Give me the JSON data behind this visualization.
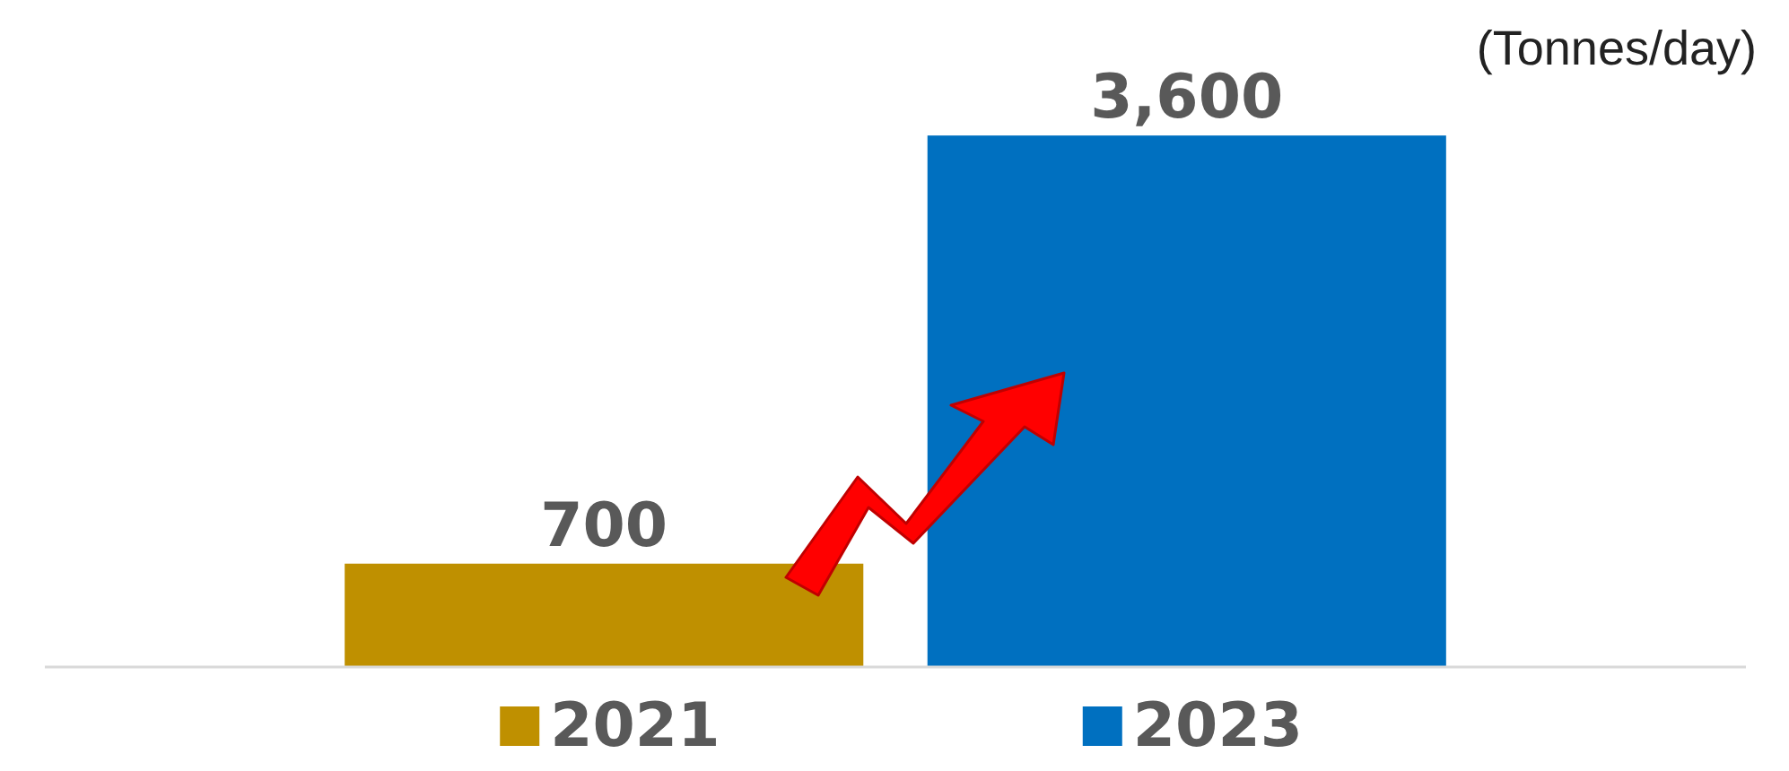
{
  "chart_data": {
    "type": "bar",
    "ylabel": "(Tonnes/day)",
    "categories": [
      null
    ],
    "series": [
      {
        "name": "2021",
        "color": "#bf9000",
        "values": [
          700
        ],
        "value_labels": [
          "700"
        ]
      },
      {
        "name": "2023",
        "color": "#0070c0",
        "values": [
          3600
        ],
        "value_labels": [
          "3,600"
        ]
      }
    ],
    "legend": "bottom"
  }
}
